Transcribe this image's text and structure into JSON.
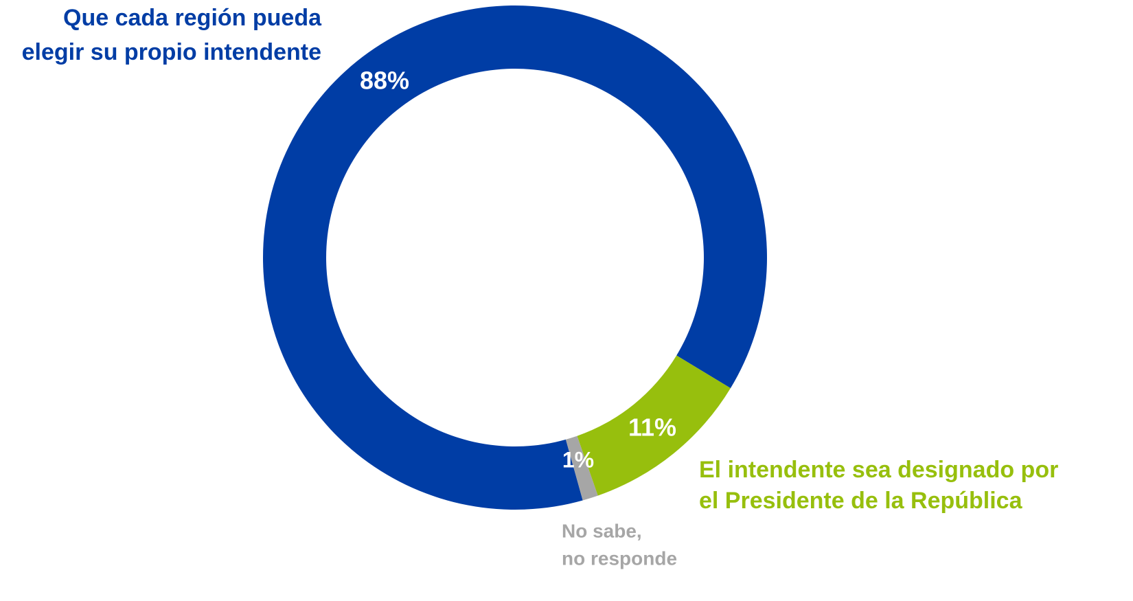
{
  "chart_data": {
    "type": "pie",
    "categories": [
      [
        "Que cada región pueda",
        "elegir su propio intendente"
      ],
      [
        "El intendente sea designado por",
        "el Presidente de la República"
      ],
      [
        "No sabe,",
        "no responde"
      ]
    ],
    "values": [
      88,
      11,
      1
    ],
    "value_labels": [
      "88%",
      "11%",
      "1%"
    ],
    "colors": [
      "#003da5",
      "#97bf0d",
      "#a6a6a6"
    ]
  }
}
